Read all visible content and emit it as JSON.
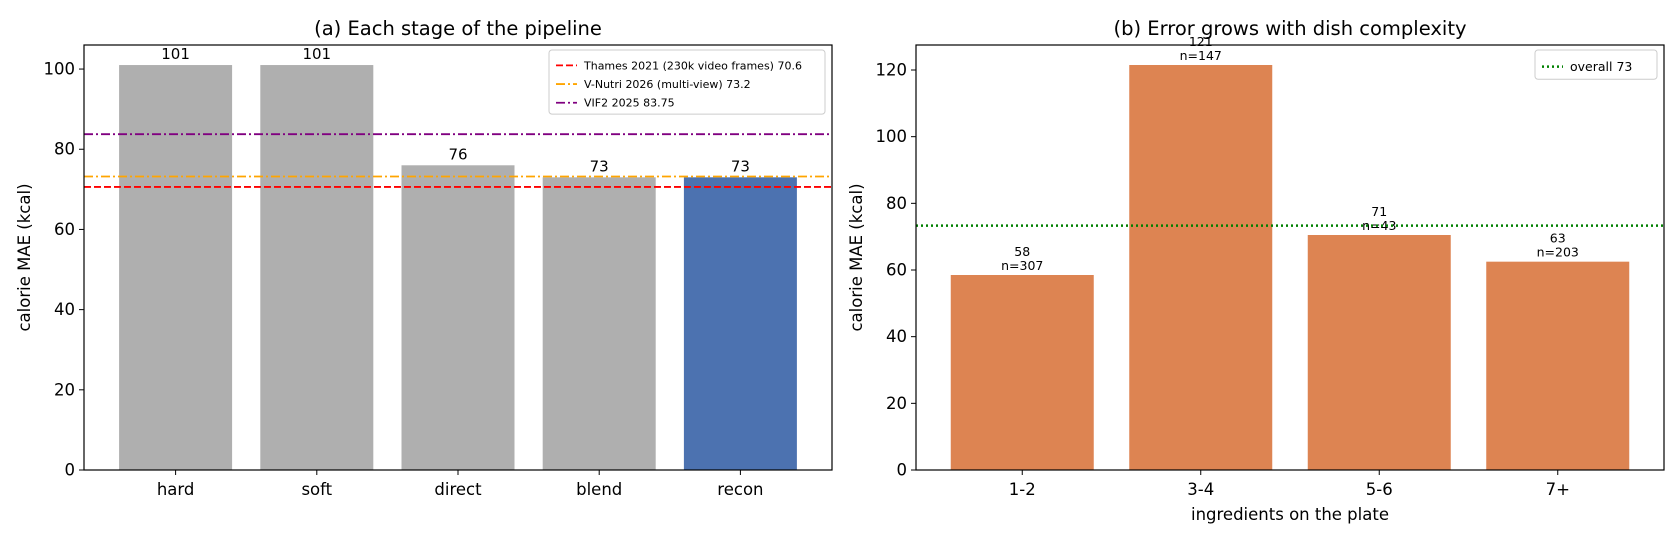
{
  "chart_data": [
    {
      "type": "bar",
      "title": "(a) Each stage of the pipeline",
      "xlabel": "",
      "ylabel": "calorie MAE (kcal)",
      "categories": [
        "hard",
        "soft",
        "direct",
        "blend",
        "recon"
      ],
      "values": [
        101,
        101,
        76,
        73,
        73
      ],
      "value_labels": [
        "101",
        "101",
        "76",
        "73",
        "73"
      ],
      "bar_colors": [
        "#afafaf",
        "#afafaf",
        "#afafaf",
        "#afafaf",
        "#4c72b0"
      ],
      "ylim": [
        0,
        106
      ],
      "yticks": [
        0,
        20,
        40,
        60,
        80,
        100
      ],
      "grid": false,
      "legend_position": "top-right",
      "reference_lines": [
        {
          "label": "Thames 2021 (230k video frames) 70.6",
          "value": 70.6,
          "color": "#ff0000",
          "style": "dashed"
        },
        {
          "label": "V-Nutri 2026 (multi-view) 73.2",
          "value": 73.2,
          "color": "#ffa500",
          "style": "dashdot"
        },
        {
          "label": "VIF2 2025 83.75",
          "value": 83.75,
          "color": "#800080",
          "style": "dashdot"
        }
      ]
    },
    {
      "type": "bar",
      "title": "(b) Error grows with dish complexity",
      "xlabel": "ingredients on the plate",
      "ylabel": "calorie MAE (kcal)",
      "categories": [
        "1-2",
        "3-4",
        "5-6",
        "7+"
      ],
      "values": [
        58.5,
        121.5,
        70.5,
        62.5
      ],
      "value_labels": [
        "58",
        "121",
        "71",
        "63"
      ],
      "counts": [
        "n=307",
        "n=147",
        "n=43",
        "n=203"
      ],
      "bar_color": "#dd8452",
      "ylim": [
        0,
        127.5
      ],
      "yticks": [
        0,
        20,
        40,
        60,
        80,
        100,
        120
      ],
      "grid": false,
      "legend_position": "top-right",
      "reference_lines": [
        {
          "label": "overall 73",
          "value": 73.3,
          "color": "#008000",
          "style": "dotted"
        }
      ]
    }
  ]
}
